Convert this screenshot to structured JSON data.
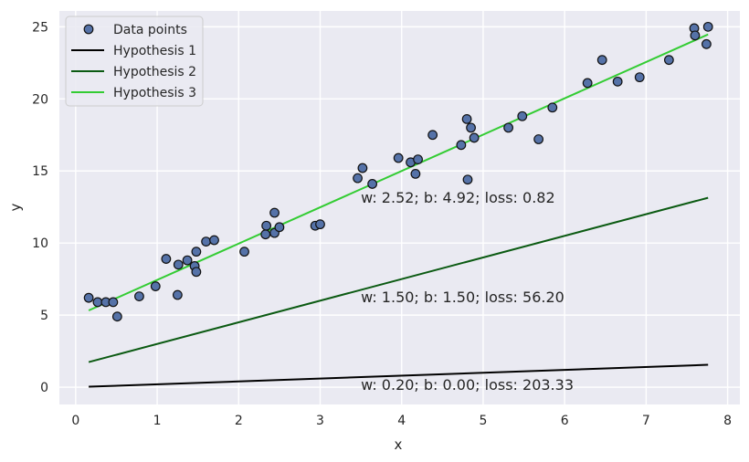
{
  "chart_data": {
    "type": "scatter",
    "xlabel": "x",
    "ylabel": "y",
    "xlim": [
      -0.2,
      8.15
    ],
    "ylim": [
      -1.2,
      26.1
    ],
    "xticks": [
      0,
      1,
      2,
      3,
      4,
      5,
      6,
      7,
      8
    ],
    "yticks": [
      0,
      5,
      10,
      15,
      20,
      25
    ],
    "grid": true,
    "legend_position": "top-left",
    "colors": {
      "background": "#eaeaf2",
      "grid": "#ffffff",
      "points_fill": "#5572a8",
      "points_edge": "#111111"
    },
    "points": {
      "name": "Data points",
      "x": [
        0.16,
        0.27,
        0.37,
        0.46,
        0.51,
        0.78,
        0.98,
        1.11,
        1.25,
        1.26,
        1.37,
        1.46,
        1.48,
        1.48,
        1.6,
        1.7,
        2.07,
        2.33,
        2.34,
        2.44,
        2.44,
        2.5,
        2.94,
        3.0,
        3.46,
        3.52,
        3.64,
        3.96,
        4.11,
        4.17,
        4.2,
        4.38,
        4.73,
        4.8,
        4.81,
        4.85,
        4.89,
        5.31,
        5.48,
        5.68,
        5.85,
        6.28,
        6.46,
        6.65,
        6.92,
        7.28,
        7.59,
        7.6,
        7.74,
        7.76
      ],
      "y": [
        6.2,
        5.9,
        5.9,
        5.9,
        4.9,
        6.3,
        7.0,
        8.9,
        6.4,
        8.5,
        8.8,
        8.4,
        8.0,
        9.4,
        10.1,
        10.2,
        9.4,
        10.6,
        11.2,
        10.7,
        12.1,
        11.1,
        11.2,
        11.3,
        14.5,
        15.2,
        14.1,
        15.9,
        15.6,
        14.8,
        15.8,
        17.5,
        16.8,
        18.6,
        14.4,
        18.0,
        17.3,
        18.0,
        18.8,
        17.2,
        19.4,
        21.1,
        22.7,
        21.2,
        21.5,
        22.7,
        24.9,
        24.4,
        23.8,
        25.0
      ]
    },
    "series": [
      {
        "name": "Hypothesis 1",
        "w": 0.2,
        "b": 0.0,
        "color": "#000000",
        "annotation": "w: 0.20; b: 0.00; loss: 203.33"
      },
      {
        "name": "Hypothesis 2",
        "w": 1.5,
        "b": 1.5,
        "color": "#0b5a12",
        "annotation": "w: 1.50; b: 1.50; loss: 56.20"
      },
      {
        "name": "Hypothesis 3",
        "w": 2.52,
        "b": 4.92,
        "color": "#33cc33",
        "annotation": "w: 2.52; b: 4.92; loss: 0.82"
      }
    ],
    "line_x_range": [
      0.16,
      7.76
    ],
    "annotation_x": 3.5,
    "annotation_y": [
      -0.2,
      5.9,
      12.8
    ]
  }
}
